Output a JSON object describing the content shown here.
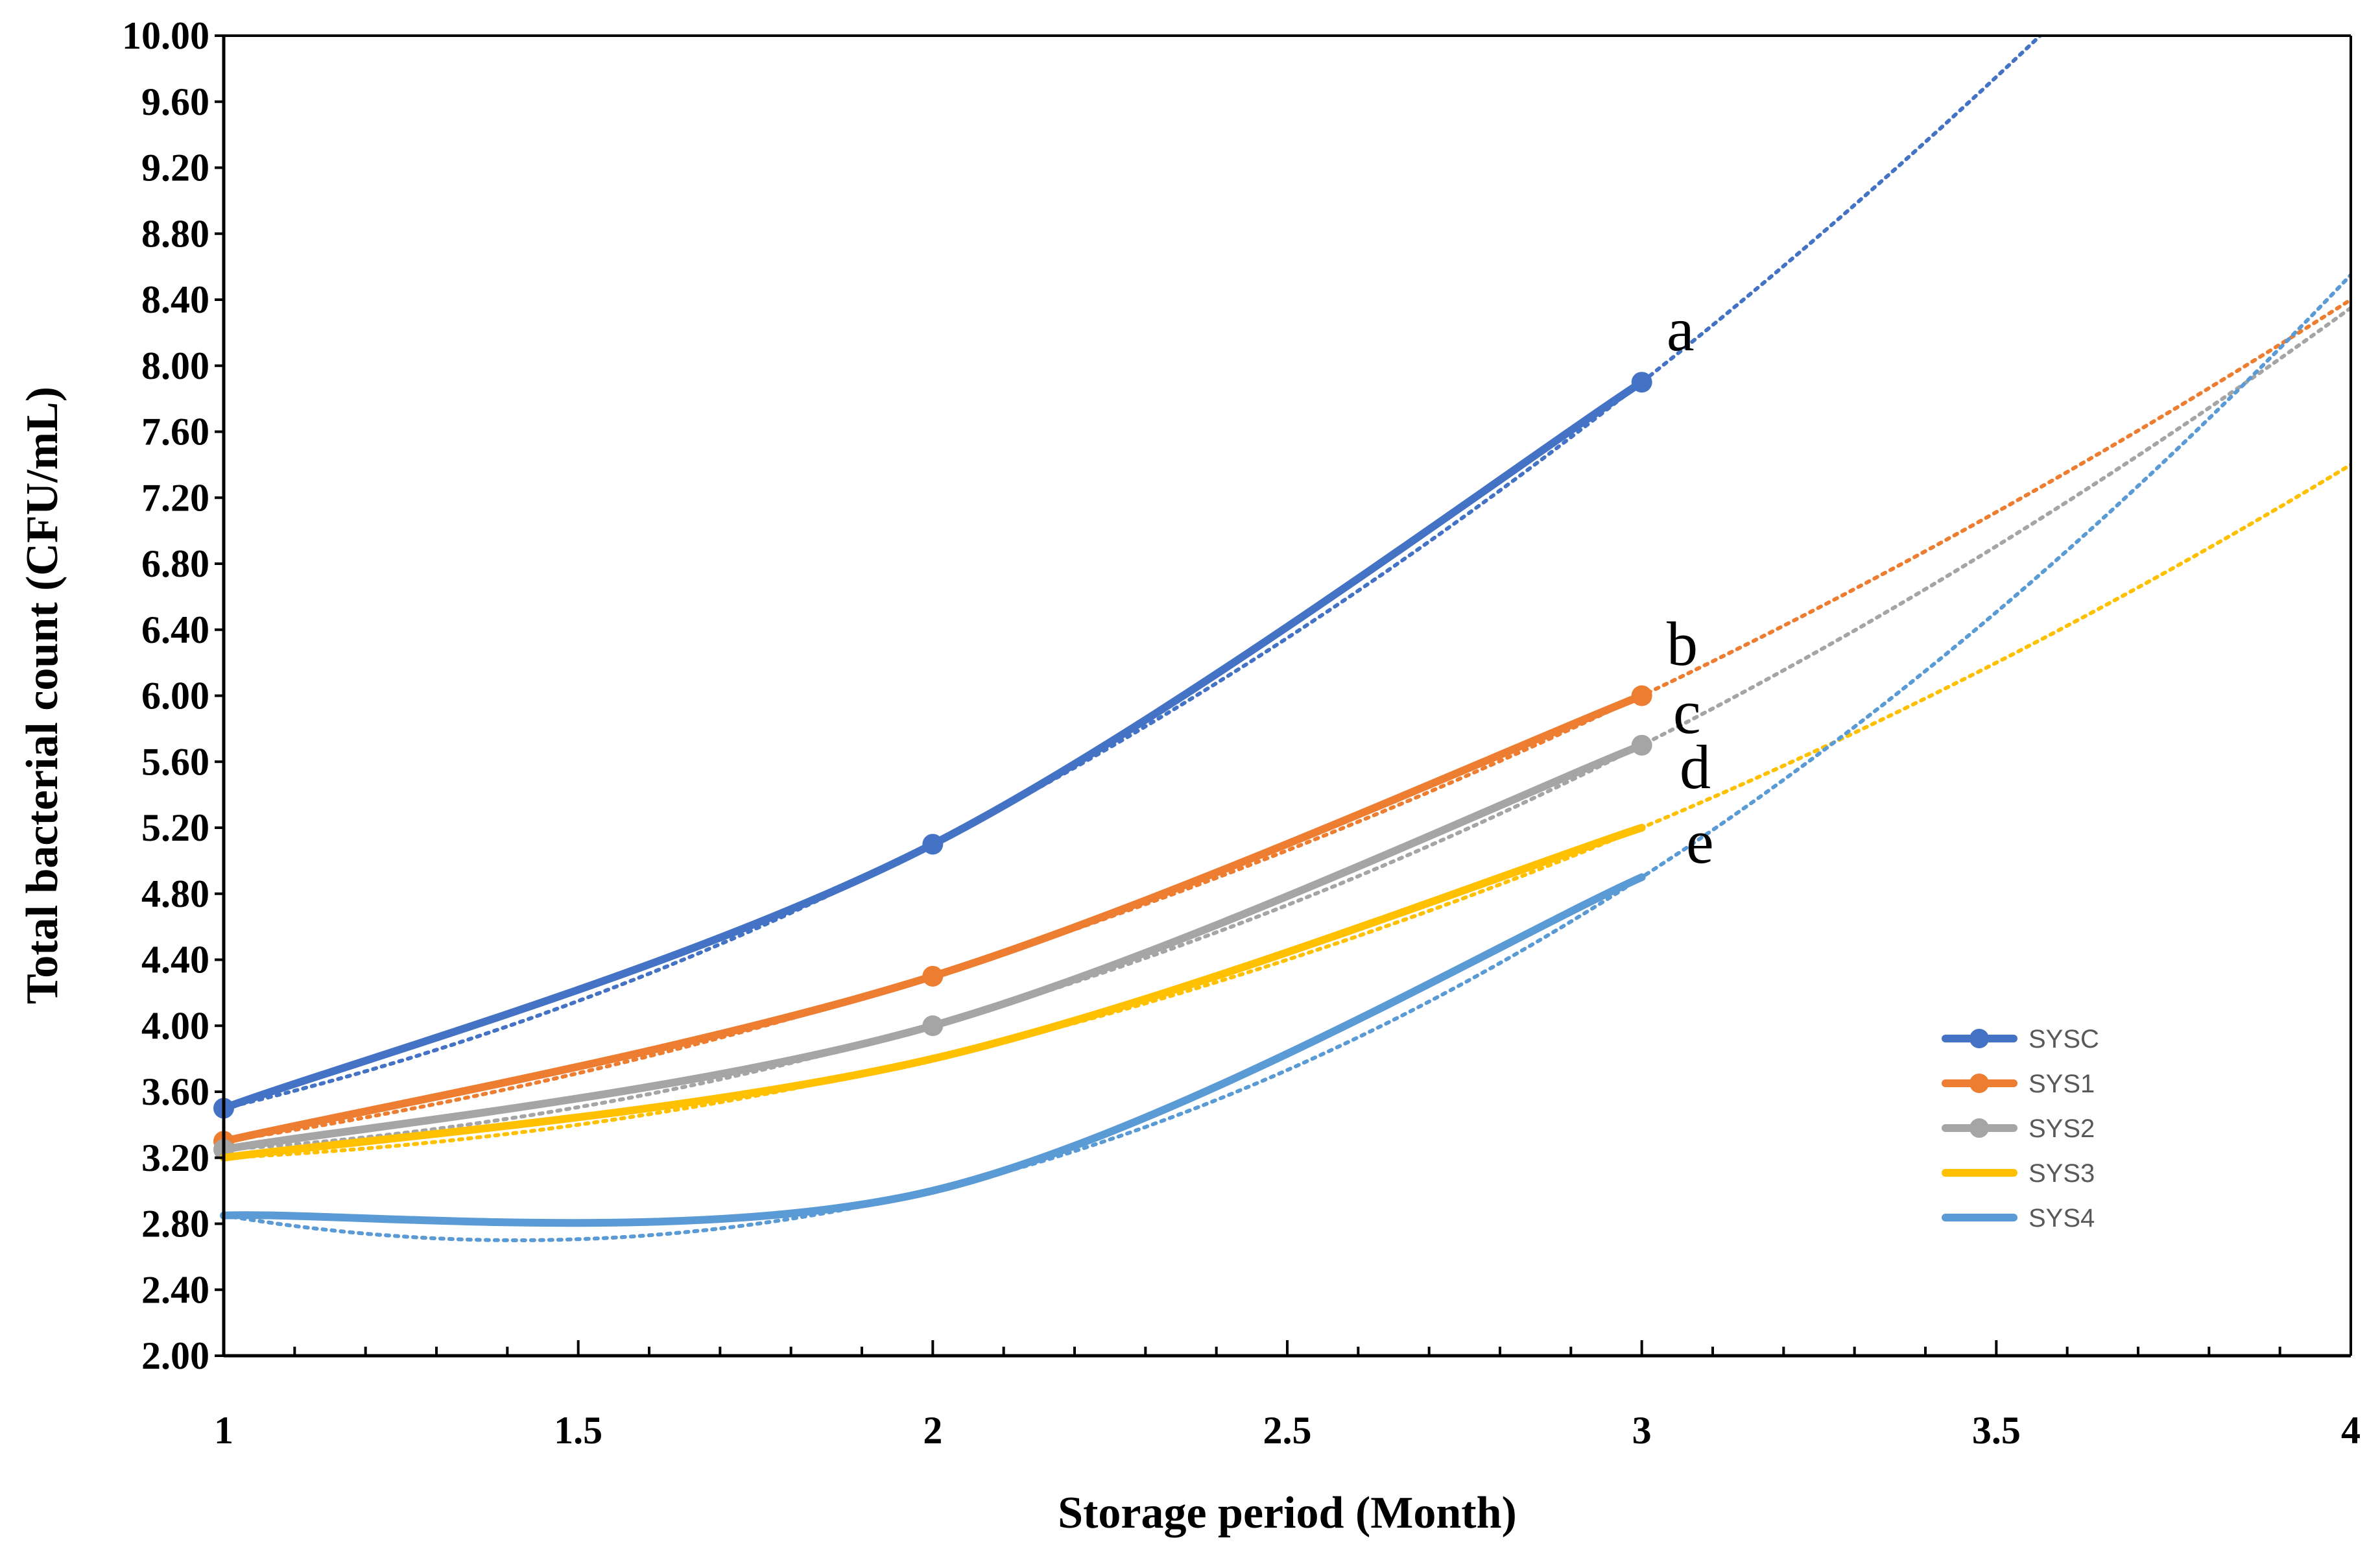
{
  "chart_data": {
    "type": "line",
    "xlabel": "Storage period (Month)",
    "ylabel": "Total bacterial count (CFU/mL)",
    "xlim": [
      1,
      4
    ],
    "ylim": [
      2.0,
      10.0
    ],
    "x_ticks": [
      "1",
      "1.5",
      "2",
      "2.5",
      "3",
      "3.5",
      "4"
    ],
    "y_ticks": [
      "2.00",
      "2.40",
      "2.80",
      "3.20",
      "3.60",
      "4.00",
      "4.40",
      "4.80",
      "5.20",
      "5.60",
      "6.00",
      "6.40",
      "6.80",
      "7.20",
      "7.60",
      "8.00",
      "8.40",
      "8.80",
      "9.20",
      "9.60",
      "10.00"
    ],
    "x": [
      1,
      2,
      3
    ],
    "series": [
      {
        "name": "SYSC",
        "values": [
          3.5,
          5.1,
          7.9
        ],
        "color": "#4472C4",
        "markers": true
      },
      {
        "name": "SYS1",
        "values": [
          3.3,
          4.3,
          6.0
        ],
        "color": "#ED7D31",
        "markers": true
      },
      {
        "name": "SYS2",
        "values": [
          3.25,
          4.0,
          5.7
        ],
        "color": "#A5A5A5",
        "markers": true
      },
      {
        "name": "SYS3",
        "values": [
          3.2,
          3.8,
          5.2
        ],
        "color": "#FFC000",
        "markers": false
      },
      {
        "name": "SYS4",
        "values": [
          2.85,
          3.0,
          4.9
        ],
        "color": "#5B9BD5",
        "markers": false
      }
    ],
    "trendline": "polynomial (order 2), dotted, extended to x = 4",
    "annotations": [
      {
        "text": "a",
        "series": "SYSC"
      },
      {
        "text": "b",
        "series": "SYS1"
      },
      {
        "text": "c",
        "series": "SYS2"
      },
      {
        "text": "d",
        "series": "SYS3"
      },
      {
        "text": "e",
        "series": "SYS4"
      }
    ],
    "legend": "bottom-right",
    "grid": false
  }
}
